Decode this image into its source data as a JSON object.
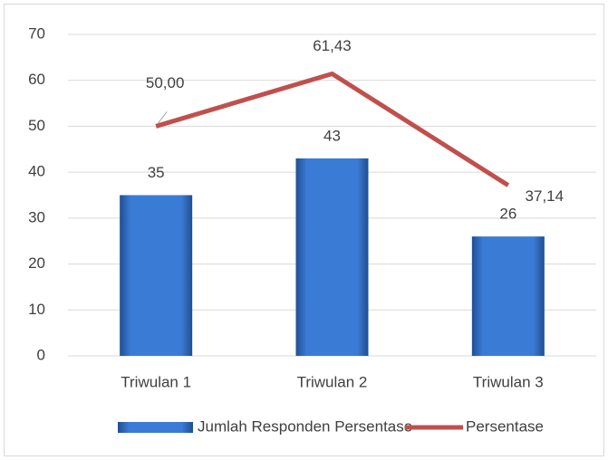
{
  "chart_data": {
    "type": "bar",
    "categories": [
      "Triwulan 1",
      "Triwulan 2",
      "Triwulan 3"
    ],
    "series": [
      {
        "name": "Jumlah Responden Persentase",
        "type": "bar",
        "color": "#2e6fc7",
        "values": [
          35,
          43,
          26
        ]
      },
      {
        "name": "Persentase",
        "type": "line",
        "color": "#c0504d",
        "values": [
          50,
          61.43,
          37.14
        ],
        "value_labels": [
          "50,00",
          "61,43",
          "37,14"
        ]
      }
    ],
    "ylim": [
      0,
      70
    ],
    "yticks": [
      0,
      10,
      20,
      30,
      40,
      50,
      60,
      70
    ],
    "grid": true,
    "legend": "bottom"
  }
}
